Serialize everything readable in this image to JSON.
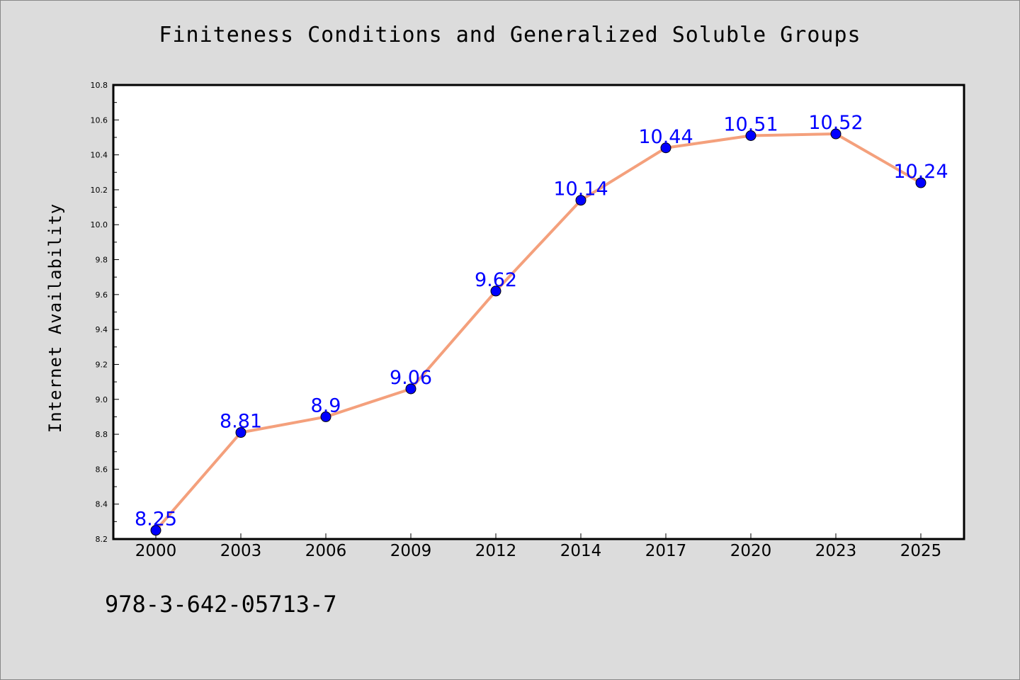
{
  "page": {
    "title": "Finiteness Conditions and Generalized Soluble Groups",
    "footer_text": "978-3-642-05713-7"
  },
  "colors": {
    "background": "#dcdcdc",
    "plot_background": "#ffffff",
    "line": "#f4a07c",
    "marker": "#0000ff",
    "data_label": "#0000ff"
  },
  "chart_data": {
    "type": "line",
    "title": "Finiteness Conditions and Generalized Soluble Groups",
    "xlabel": "",
    "ylabel": "Internet Availability",
    "categories": [
      "2000",
      "2003",
      "2006",
      "2009",
      "2012",
      "2014",
      "2017",
      "2020",
      "2023",
      "2025"
    ],
    "series": [
      {
        "values": [
          8.25,
          8.81,
          8.9,
          9.06,
          9.62,
          10.14,
          10.44,
          10.51,
          10.52,
          10.24
        ],
        "labels": [
          "8.25",
          "8.81",
          "8.9",
          "9.06",
          "9.62",
          "10.14",
          "10.44",
          "10.51",
          "10.52",
          "10.24"
        ]
      }
    ],
    "ylim": [
      8.2,
      10.8
    ],
    "yticks": [
      "8.2",
      "8.4",
      "8.6",
      "8.8",
      "9.0",
      "9.2",
      "9.4",
      "9.6",
      "9.8",
      "10.0",
      "10.2",
      "10.4",
      "10.6",
      "10.8"
    ],
    "grid": false,
    "legend": "none"
  }
}
